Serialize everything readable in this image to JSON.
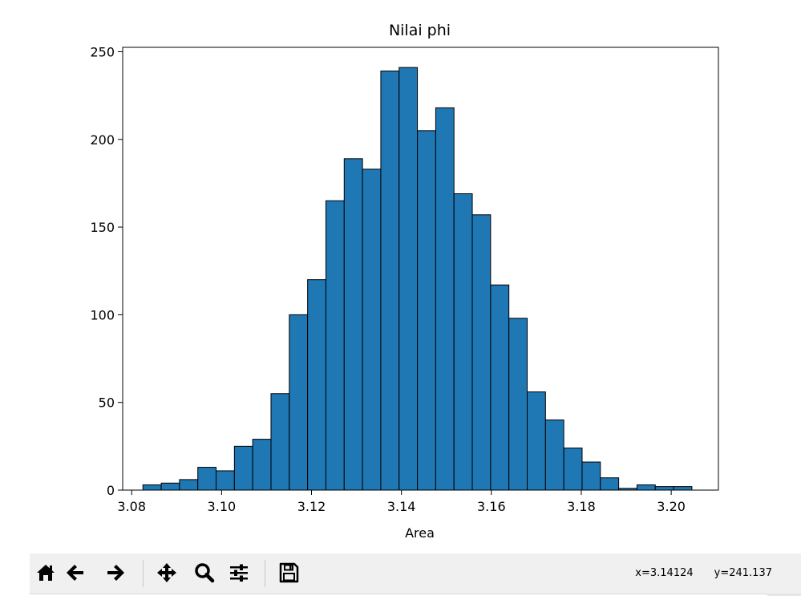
{
  "toolbar": {
    "buttons": [
      {
        "icon": "home-icon"
      },
      {
        "icon": "back-arrow-icon"
      },
      {
        "icon": "forward-arrow-icon"
      },
      {
        "icon": "pan-icon"
      },
      {
        "icon": "zoom-icon"
      },
      {
        "icon": "configure-subplots-icon"
      },
      {
        "icon": "save-icon"
      }
    ],
    "cursor_x": "x=3.14124",
    "cursor_y": "y=241.137"
  },
  "colors": {
    "bar_fill": "#1f77b4",
    "bar_edge": "#000000",
    "toolbar_bg": "#f0f0f0"
  },
  "chart_data": {
    "type": "bar",
    "title": "Nilai phi",
    "xlabel": "Area",
    "ylabel": "",
    "xlim": [
      3.078,
      3.2105
    ],
    "ylim": [
      0,
      252.5
    ],
    "xticks": [
      "3.08",
      "3.10",
      "3.12",
      "3.14",
      "3.16",
      "3.18",
      "3.20"
    ],
    "yticks": [
      "0",
      "50",
      "100",
      "150",
      "200",
      "250"
    ],
    "grid": false,
    "bin_start": 3.0825,
    "bin_width": 0.00407,
    "values": [
      3,
      4,
      6,
      13,
      11,
      25,
      29,
      55,
      100,
      120,
      165,
      189,
      183,
      239,
      241,
      205,
      218,
      169,
      157,
      117,
      98,
      56,
      40,
      24,
      16,
      7,
      1,
      3,
      2,
      2
    ]
  }
}
